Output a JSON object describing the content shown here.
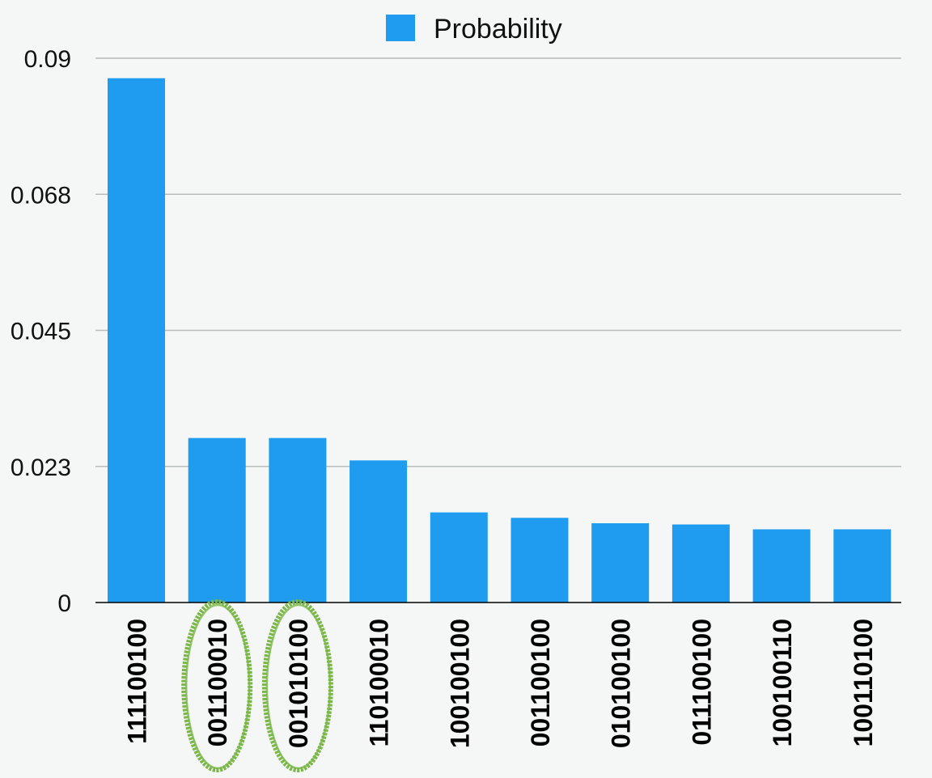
{
  "chart_data": {
    "type": "bar",
    "categories": [
      "111100100",
      "001100010",
      "001010100",
      "110100010",
      "100100100",
      "001100100",
      "010100100",
      "011100100",
      "100100110",
      "100110100"
    ],
    "series": [
      {
        "name": "Probability",
        "values": [
          0.0867,
          0.0272,
          0.0272,
          0.0235,
          0.0149,
          0.014,
          0.0131,
          0.0129,
          0.0121,
          0.0121
        ]
      }
    ],
    "y_ticks": [
      "0",
      "0.023",
      "0.045",
      "0.068",
      "0.09"
    ],
    "ylim": [
      0,
      0.09
    ],
    "grid": true,
    "legend": "top-center",
    "highlighted_categories": [
      "001100010",
      "001010100"
    ],
    "colors": {
      "bar": "#1f9bf0",
      "grid": "#b8bcbc",
      "axis": "#000000",
      "highlight": "#7ab648",
      "background": "#f5f7f6"
    }
  }
}
